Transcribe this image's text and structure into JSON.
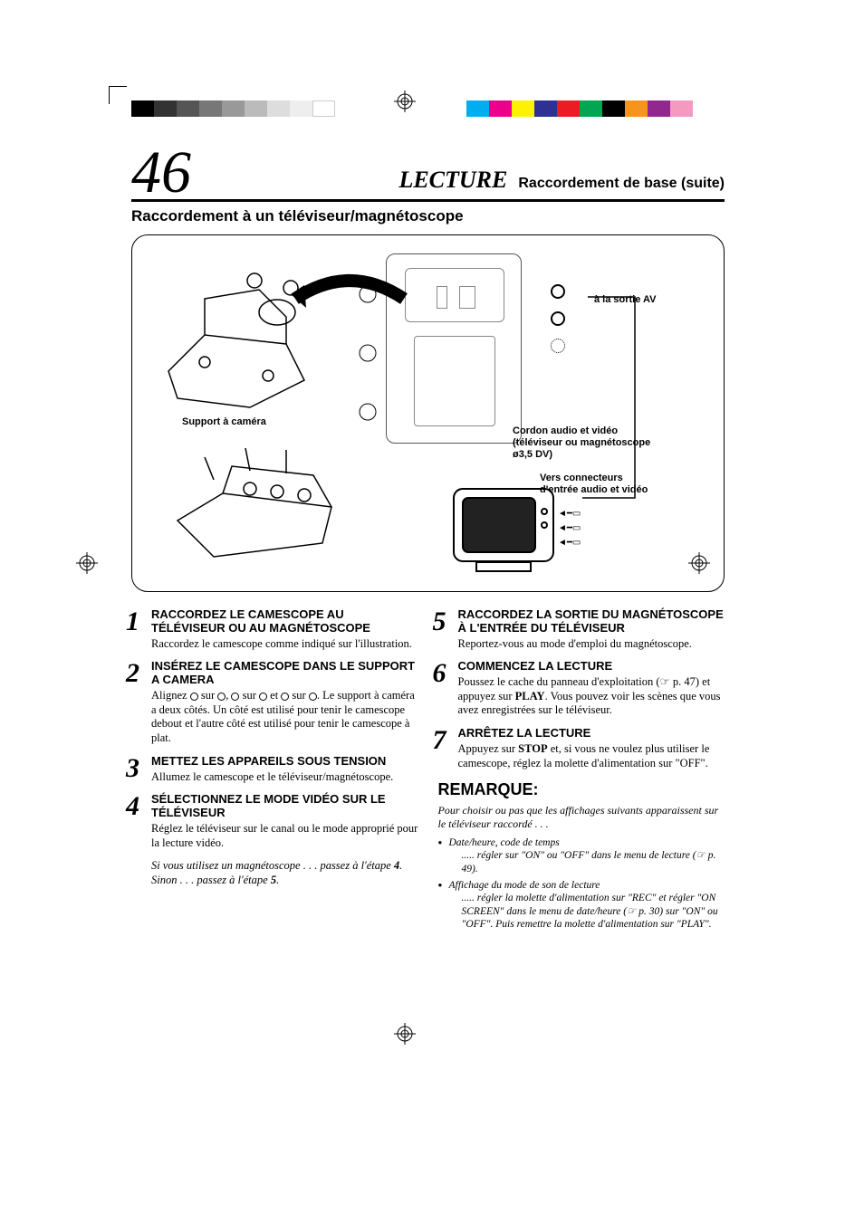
{
  "crop_colors_left": [
    "#000000",
    "#333333",
    "#555555",
    "#777777",
    "#999999",
    "#bbbbbb",
    "#dddddd",
    "#eeeeee",
    "#ffffff"
  ],
  "crop_colors_right": [
    "#00aeef",
    "#ec008c",
    "#fff200",
    "#2e3192",
    "#ed1c24",
    "#00a651",
    "#000000",
    "#f7941d",
    "#92278f",
    "#f49ac1"
  ],
  "page_number": "46",
  "header": {
    "section": "LECTURE",
    "subsection": "Raccordement de base (suite)"
  },
  "subtitle": "Raccordement à un téléviseur/magnétoscope",
  "diagram": {
    "label_support": "Support à caméra",
    "label_av_out": "à la sortie AV",
    "label_cord": "Cordon audio et vidéo (téléviseur ou magnétoscope ø3,5 DV)",
    "label_to_tv": "Vers connecteurs d'entrée audio et vidéo"
  },
  "steps_left": [
    {
      "n": "1",
      "title": "RACCORDEZ LE CAMESCOPE AU TÉLÉVISEUR OU AU MAGNÉTOSCOPE",
      "body_html": "Raccordez le camescope comme indiqué sur l'illustration."
    },
    {
      "n": "2",
      "title": "INSÉREZ LE CAMESCOPE DANS LE SUPPORT A CAMERA",
      "body_html": "Alignez <span class='circ'></span> sur <span class='circ'></span>, <span class='circ'></span> sur <span class='circ'></span> et <span class='circ'></span> sur <span class='circ'></span>. Le support à caméra a deux côtés. Un côté est utilisé pour tenir le camescope debout et l'autre côté est utilisé pour tenir le camescope à plat."
    },
    {
      "n": "3",
      "title": "METTEZ LES APPAREILS SOUS TENSION",
      "body_html": "Allumez le camescope et le téléviseur/magnétoscope."
    },
    {
      "n": "4",
      "title": "SÉLECTIONNEZ LE MODE VIDÉO SUR LE TÉLÉVISEUR",
      "body_html": "Réglez le téléviseur sur le canal ou le mode approprié pour la lecture vidéo."
    }
  ],
  "conditional": {
    "line1": "Si vous utilisez un magnétoscope . . . passez à l'étape <b>4</b>.",
    "line2": "Sinon . . . passez à l'étape <b>5</b>."
  },
  "steps_right": [
    {
      "n": "5",
      "title": "RACCORDEZ LA SORTIE DU MAGNÉTOSCOPE À L'ENTRÉE DU TÉLÉVISEUR",
      "body_html": "Reportez-vous au mode d'emploi du magnétoscope."
    },
    {
      "n": "6",
      "title": "COMMENCEZ LA LECTURE",
      "body_html": "Poussez le cache du panneau d'exploitation (<span class='ref-icon'>☞</span> p. 47) et appuyez sur <b>PLAY</b>. Vous pouvez voir les scènes que vous avez enregistrées sur le téléviseur."
    },
    {
      "n": "7",
      "title": "ARRÊTEZ LA LECTURE",
      "body_html": "Appuyez sur <b>STOP</b> et, si vous ne voulez plus utiliser le camescope, réglez la molette d'alimentation sur \"OFF\"."
    }
  ],
  "remark": {
    "title": "REMARQUE:",
    "intro": "Pour choisir ou pas que les affichages suivants apparaissent sur le téléviseur raccordé . . .",
    "items": [
      {
        "head": "Date/heure, code de temps",
        "sub": "..... régler sur \"ON\" ou \"OFF\" dans le menu de lecture (☞ p. 49)."
      },
      {
        "head": "Affichage du mode de son de lecture",
        "sub": "..... régler la molette d'alimentation sur \"REC\" et régler \"ON SCREEN\" dans le menu de date/heure (☞ p. 30) sur \"ON\" ou \"OFF\". Puis remettre la molette d'alimentation sur \"PLAY\"."
      }
    ]
  }
}
